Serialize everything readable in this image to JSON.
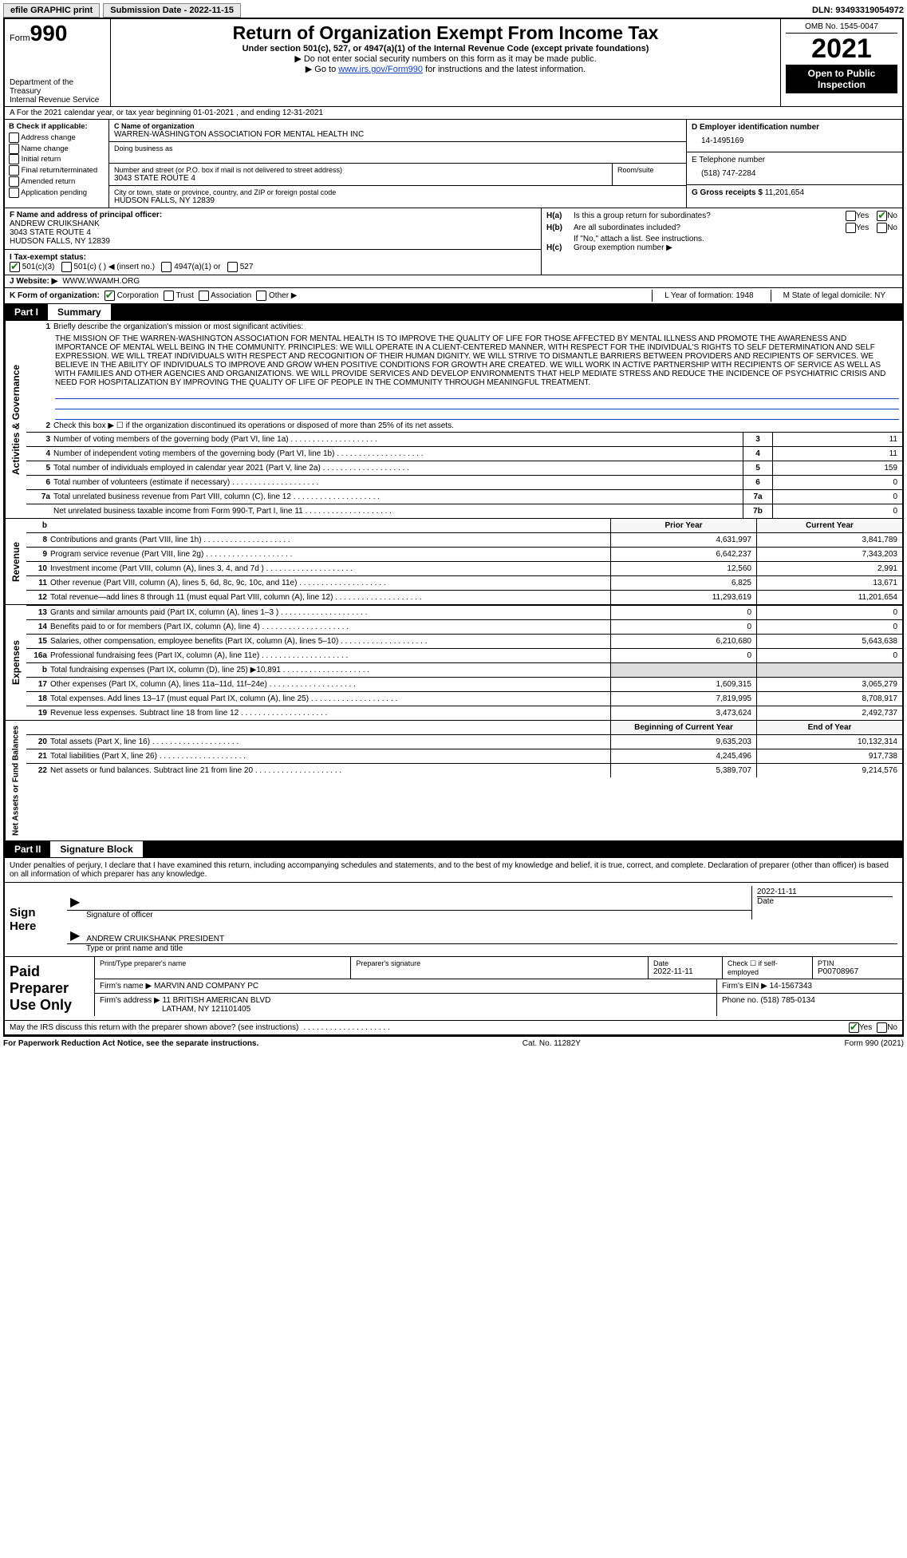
{
  "topbar": {
    "efile": "efile GRAPHIC print",
    "submission_date_label": "Submission Date - 2022-11-15",
    "dln_label": "DLN: 93493319054972"
  },
  "header": {
    "form_word": "Form",
    "form_num": "990",
    "dept": "Department of the Treasury",
    "irs": "Internal Revenue Service",
    "title": "Return of Organization Exempt From Income Tax",
    "subtitle": "Under section 501(c), 527, or 4947(a)(1) of the Internal Revenue Code (except private foundations)",
    "instr1": "▶ Do not enter social security numbers on this form as it may be made public.",
    "instr2_pre": "▶ Go to ",
    "instr2_link": "www.irs.gov/Form990",
    "instr2_post": " for instructions and the latest information.",
    "omb": "OMB No. 1545-0047",
    "year": "2021",
    "open": "Open to Public Inspection"
  },
  "row_a": "A For the 2021 calendar year, or tax year beginning 01-01-2021   , and ending 12-31-2021",
  "colB": {
    "header": "B Check if applicable:",
    "addr_change": "Address change",
    "name_change": "Name change",
    "initial": "Initial return",
    "final": "Final return/terminated",
    "amended": "Amended return",
    "application": "Application pending"
  },
  "colC": {
    "name_label": "C Name of organization",
    "name": "WARREN-WASHINGTON ASSOCIATION FOR MENTAL HEALTH INC",
    "dba_label": "Doing business as",
    "street_label": "Number and street (or P.O. box if mail is not delivered to street address)",
    "street": "3043 STATE ROUTE 4",
    "room_label": "Room/suite",
    "city_label": "City or town, state or province, country, and ZIP or foreign postal code",
    "city": "HUDSON FALLS, NY  12839"
  },
  "colD": {
    "ein_label": "D Employer identification number",
    "ein": "14-1495169",
    "phone_label": "E Telephone number",
    "phone": "(518) 747-2284",
    "gross_label": "G Gross receipts $",
    "gross": "11,201,654"
  },
  "sectF": {
    "officer_label": "F  Name and address of principal officer:",
    "officer_name": "ANDREW CRUIKSHANK",
    "officer_addr1": "3043 STATE ROUTE 4",
    "officer_addr2": "HUDSON FALLS, NY  12839"
  },
  "sectH": {
    "ha": "Is this a group return for subordinates?",
    "hb": "Are all subordinates included?",
    "hb_note": "If \"No,\" attach a list. See instructions.",
    "hc": "Group exemption number ▶",
    "ha_lbl": "H(a)",
    "hb_lbl": "H(b)",
    "hc_lbl": "H(c)"
  },
  "rowI": {
    "label": "I   Tax-exempt status:",
    "o1": "501(c)(3)",
    "o2": "501(c) (  ) ◀ (insert no.)",
    "o3": "4947(a)(1) or",
    "o4": "527"
  },
  "rowJ": {
    "label": "J   Website: ▶",
    "value": " WWW.WWAMH.ORG"
  },
  "rowK": {
    "label": "K Form of organization:",
    "corp": "Corporation",
    "trust": "Trust",
    "assoc": "Association",
    "other": "Other ▶"
  },
  "rowL": {
    "l_label": "L Year of formation: 1948",
    "m_label": "M State of legal domicile: NY"
  },
  "parts": {
    "p1": "Part I",
    "p1t": "Summary",
    "p2": "Part II",
    "p2t": "Signature Block"
  },
  "summary": {
    "vlabel_gov": "Activities & Governance",
    "vlabel_rev": "Revenue",
    "vlabel_exp": "Expenses",
    "vlabel_net": "Net Assets or Fund Balances",
    "line1_label": "Briefly describe the organization's mission or most significant activities:",
    "mission": "THE MISSION OF THE WARREN-WASHINGTON ASSOCIATION FOR MENTAL HEALTH IS TO IMPROVE THE QUALITY OF LIFE FOR THOSE AFFECTED BY MENTAL ILLNESS AND PROMOTE THE AWARENESS AND IMPORTANCE OF MENTAL WELL BEING IN THE COMMUNITY. PRINCIPLES: WE WILL OPERATE IN A CLIENT-CENTERED MANNER, WITH RESPECT FOR THE INDIVIDUAL'S RIGHTS TO SELF DETERMINATION AND SELF EXPRESSION. WE WILL TREAT INDIVIDUALS WITH RESPECT AND RECOGNITION OF THEIR HUMAN DIGNITY. WE WILL STRIVE TO DISMANTLE BARRIERS BETWEEN PROVIDERS AND RECIPIENTS OF SERVICES. WE BELIEVE IN THE ABILITY OF INDIVIDUALS TO IMPROVE AND GROW WHEN POSITIVE CONDITIONS FOR GROWTH ARE CREATED. WE WILL WORK IN ACTIVE PARTNERSHIP WITH RECIPIENTS OF SERVICE AS WELL AS WITH FAMILIES AND OTHER AGENCIES AND ORGANIZATIONS. WE WILL PROVIDE SERVICES AND DEVELOP ENVIRONMENTS THAT HELP MEDIATE STRESS AND REDUCE THE INCIDENCE OF PSYCHIATRIC CRISIS AND NEED FOR HOSPITALIZATION BY IMPROVING THE QUALITY OF LIFE OF PEOPLE IN THE COMMUNITY THROUGH MEANINGFUL TREATMENT.",
    "line2": "Check this box ▶ ☐ if the organization discontinued its operations or disposed of more than 25% of its net assets.",
    "lines_num": [
      {
        "n": "3",
        "t": "Number of voting members of the governing body (Part VI, line 1a)",
        "k": "3",
        "v": "11"
      },
      {
        "n": "4",
        "t": "Number of independent voting members of the governing body (Part VI, line 1b)",
        "k": "4",
        "v": "11"
      },
      {
        "n": "5",
        "t": "Total number of individuals employed in calendar year 2021 (Part V, line 2a)",
        "k": "5",
        "v": "159"
      },
      {
        "n": "6",
        "t": "Total number of volunteers (estimate if necessary)",
        "k": "6",
        "v": "0"
      },
      {
        "n": "7a",
        "t": "Total unrelated business revenue from Part VIII, column (C), line 12",
        "k": "7a",
        "v": "0"
      },
      {
        "n": "",
        "t": "Net unrelated business taxable income from Form 990-T, Part I, line 11",
        "k": "7b",
        "v": "0"
      }
    ],
    "col_prior": "Prior Year",
    "col_current": "Current Year",
    "rev": [
      {
        "n": "8",
        "t": "Contributions and grants (Part VIII, line 1h)",
        "p": "4,631,997",
        "c": "3,841,789"
      },
      {
        "n": "9",
        "t": "Program service revenue (Part VIII, line 2g)",
        "p": "6,642,237",
        "c": "7,343,203"
      },
      {
        "n": "10",
        "t": "Investment income (Part VIII, column (A), lines 3, 4, and 7d )",
        "p": "12,560",
        "c": "2,991"
      },
      {
        "n": "11",
        "t": "Other revenue (Part VIII, column (A), lines 5, 6d, 8c, 9c, 10c, and 11e)",
        "p": "6,825",
        "c": "13,671"
      },
      {
        "n": "12",
        "t": "Total revenue—add lines 8 through 11 (must equal Part VIII, column (A), line 12)",
        "p": "11,293,619",
        "c": "11,201,654"
      }
    ],
    "exp": [
      {
        "n": "13",
        "t": "Grants and similar amounts paid (Part IX, column (A), lines 1–3 )",
        "p": "0",
        "c": "0"
      },
      {
        "n": "14",
        "t": "Benefits paid to or for members (Part IX, column (A), line 4)",
        "p": "0",
        "c": "0"
      },
      {
        "n": "15",
        "t": "Salaries, other compensation, employee benefits (Part IX, column (A), lines 5–10)",
        "p": "6,210,680",
        "c": "5,643,638"
      },
      {
        "n": "16a",
        "t": "Professional fundraising fees (Part IX, column (A), line 11e)",
        "p": "0",
        "c": "0"
      },
      {
        "n": "b",
        "t": "Total fundraising expenses (Part IX, column (D), line 25) ▶10,891",
        "p": "",
        "c": "",
        "grey": true
      },
      {
        "n": "17",
        "t": "Other expenses (Part IX, column (A), lines 11a–11d, 11f–24e)",
        "p": "1,609,315",
        "c": "3,065,279"
      },
      {
        "n": "18",
        "t": "Total expenses. Add lines 13–17 (must equal Part IX, column (A), line 25)",
        "p": "7,819,995",
        "c": "8,708,917"
      },
      {
        "n": "19",
        "t": "Revenue less expenses. Subtract line 18 from line 12",
        "p": "3,473,624",
        "c": "2,492,737"
      }
    ],
    "col_begin": "Beginning of Current Year",
    "col_end": "End of Year",
    "net": [
      {
        "n": "20",
        "t": "Total assets (Part X, line 16)",
        "p": "9,635,203",
        "c": "10,132,314"
      },
      {
        "n": "21",
        "t": "Total liabilities (Part X, line 26)",
        "p": "4,245,496",
        "c": "917,738"
      },
      {
        "n": "22",
        "t": "Net assets or fund balances. Subtract line 21 from line 20",
        "p": "5,389,707",
        "c": "9,214,576"
      }
    ]
  },
  "sig": {
    "penalties": "Under penalties of perjury, I declare that I have examined this return, including accompanying schedules and statements, and to the best of my knowledge and belief, it is true, correct, and complete. Declaration of preparer (other than officer) is based on all information of which preparer has any knowledge.",
    "sign_here": "Sign Here",
    "sig_of_officer": "Signature of officer",
    "date_label": "Date",
    "sig_date": "2022-11-11",
    "name_title": "ANDREW CRUIKSHANK  PRESIDENT",
    "type_print": "Type or print name and title",
    "paid": "Paid Preparer Use Only",
    "prep_name_label": "Print/Type preparer's name",
    "prep_sig_label": "Preparer's signature",
    "prep_date": "2022-11-11",
    "check_self": "Check ☐ if self-employed",
    "ptin_label": "PTIN",
    "ptin": "P00708967",
    "firm_name_label": "Firm's name    ▶",
    "firm_name": "MARVIN AND COMPANY PC",
    "firm_ein_label": "Firm's EIN ▶",
    "firm_ein": "14-1567343",
    "firm_addr_label": "Firm's address ▶",
    "firm_addr1": "11 BRITISH AMERICAN BLVD",
    "firm_addr2": "LATHAM, NY  121101405",
    "firm_phone_label": "Phone no.",
    "firm_phone": "(518) 785-0134",
    "discuss": "May the IRS discuss this return with the preparer shown above? (see instructions)",
    "paperwork": "For Paperwork Reduction Act Notice, see the separate instructions.",
    "catno": "Cat. No. 11282Y",
    "formfoot": "Form 990 (2021)"
  },
  "yes": "Yes",
  "no": "No"
}
